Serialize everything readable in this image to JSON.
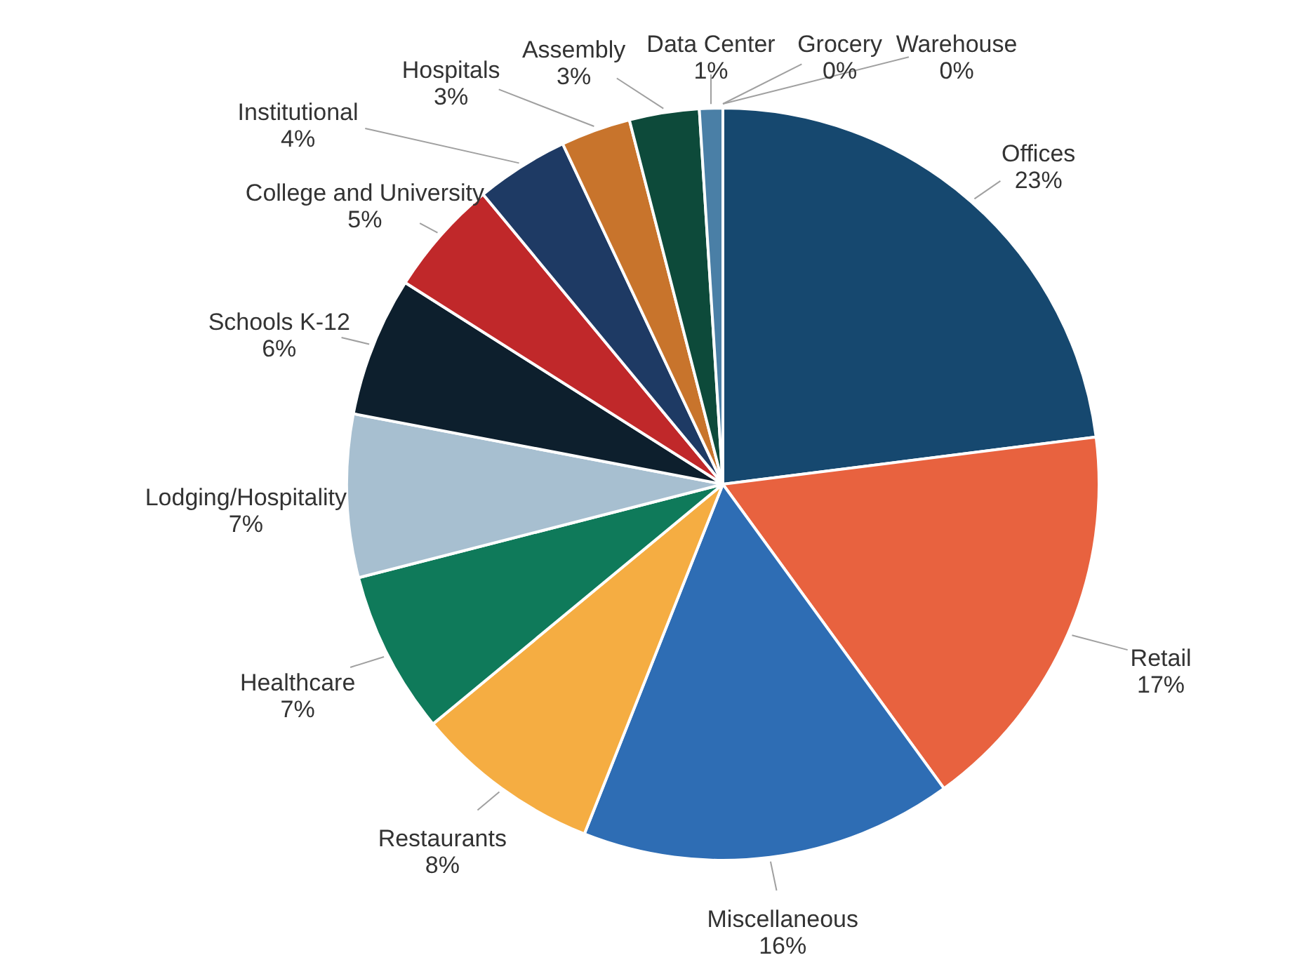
{
  "chart_data": {
    "type": "pie",
    "categories": [
      "Offices",
      "Retail",
      "Miscellaneous",
      "Restaurants",
      "Healthcare",
      "Lodging/Hospitality",
      "Schools K-12",
      "College and University",
      "Institutional",
      "Hospitals",
      "Assembly",
      "Data Center",
      "Grocery",
      "Warehouse"
    ],
    "values": [
      23,
      17,
      16,
      8,
      7,
      7,
      6,
      5,
      4,
      3,
      3,
      1,
      0,
      0
    ],
    "value_labels": [
      "23%",
      "17%",
      "16%",
      "8%",
      "7%",
      "7%",
      "6%",
      "5%",
      "4%",
      "3%",
      "3%",
      "1%",
      "0%",
      "0%"
    ],
    "colors": [
      "#16486f",
      "#e8623f",
      "#2e6db4",
      "#f5ad42",
      "#0f7a5a",
      "#a7bfd0",
      "#0d1f2d",
      "#c0282a",
      "#1e3a64",
      "#c8742c",
      "#0d4a3a",
      "#4a7fa6",
      "#7fa8c9",
      "#1a6db0"
    ]
  }
}
